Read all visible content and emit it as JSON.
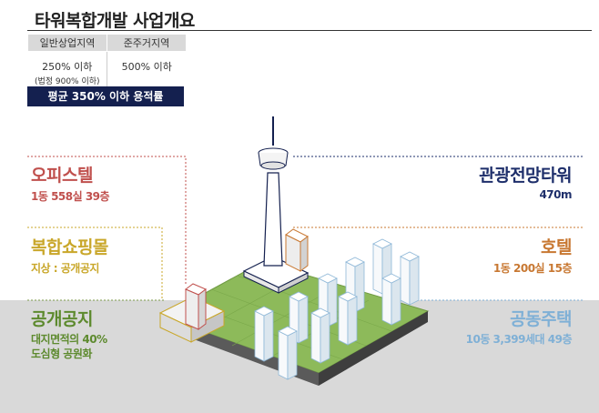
{
  "title": "타워복합개발 사업개요",
  "zoning_table": {
    "headers": [
      "일반상업지역",
      "준주거지역"
    ],
    "general_commercial": {
      "value": "250% 이하",
      "note": "(법정 900% 이하)"
    },
    "semi_residential": {
      "value": "500% 이하"
    }
  },
  "average_ratio": "평균 350% 이하 용적률",
  "labels": {
    "office": {
      "name": "오피스텔",
      "detail": "1동  558실  39층",
      "color": "#c0504d"
    },
    "mall": {
      "name": "복합쇼핑몰",
      "detail": "지상 : 공개공지",
      "color": "#c9a72a"
    },
    "public_space": {
      "name": "공개공지",
      "detail1": "대지면적의 40%",
      "detail2": "도심형 공원화",
      "color": "#5d8a2e"
    },
    "tower": {
      "name": "관광전망타워",
      "detail": "470m",
      "color": "#1e2f6b"
    },
    "hotel": {
      "name": "호텔",
      "detail": "1동  200실  15층",
      "color": "#c87832"
    },
    "housing": {
      "name": "공동주택",
      "detail": "10동  3,399세대  49층",
      "color": "#7fb0d6"
    }
  }
}
